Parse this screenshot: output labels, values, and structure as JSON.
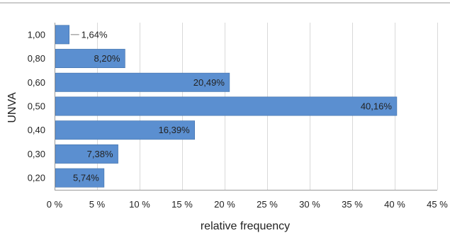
{
  "chart_data": {
    "type": "bar",
    "orientation": "horizontal",
    "categories": [
      "1,00",
      "0,80",
      "0,60",
      "0,50",
      "0,40",
      "0,30",
      "0,20"
    ],
    "values": [
      1.64,
      8.2,
      20.49,
      40.16,
      16.39,
      7.38,
      5.74
    ],
    "data_labels": [
      "1,64%",
      "8,20%",
      "20,49%",
      "40,16%",
      "16,39%",
      "7,38%",
      "5,74%"
    ],
    "xlabel": "relative frequency",
    "ylabel": "UNVA",
    "xlim": [
      0,
      45
    ],
    "xticks": [
      0,
      5,
      10,
      15,
      20,
      25,
      30,
      35,
      40,
      45
    ],
    "xtick_labels": [
      "0 %",
      "5 %",
      "10 %",
      "15 %",
      "20 %",
      "25 %",
      "30 %",
      "35 %",
      "40 %",
      "45 %"
    ],
    "grid": "vertical",
    "colors": {
      "bar": "#5b8fd0",
      "bar_edge": "#3f6fa8",
      "grid": "#d9d9d9",
      "axis": "#9a9a9a",
      "top_rule": "#9a9a9a"
    }
  }
}
